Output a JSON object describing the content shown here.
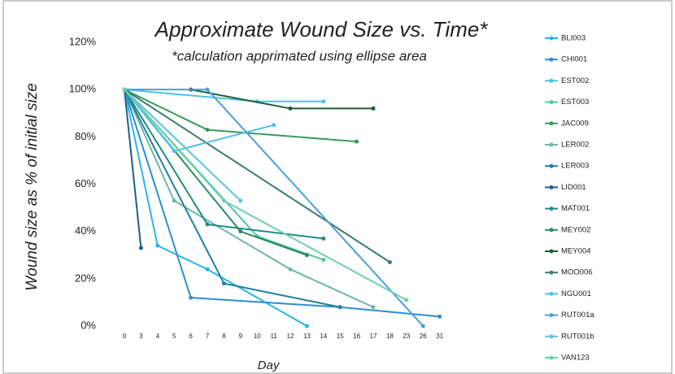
{
  "chart_data": {
    "type": "line",
    "title": "Approximate Wound Size vs. Time*",
    "subtitle": "*calculation apprimated using ellipse area",
    "x_label": "Day",
    "y_label": "Wound size as % of initial size",
    "categories": [
      "0",
      "3",
      "4",
      "5",
      "6",
      "7",
      "8",
      "9",
      "10",
      "11",
      "12",
      "13",
      "14",
      "15",
      "16",
      "17",
      "18",
      "23",
      "26",
      "31"
    ],
    "ylim": [
      0,
      120
    ],
    "yticks": [
      {
        "value": 0,
        "label": "0%"
      },
      {
        "value": 20,
        "label": "20%"
      },
      {
        "value": 40,
        "label": "40%"
      },
      {
        "value": 60,
        "label": "60%"
      },
      {
        "value": 80,
        "label": "80%"
      },
      {
        "value": 100,
        "label": "100%"
      },
      {
        "value": 120,
        "label": "120%"
      }
    ],
    "legend": "right",
    "series": [
      {
        "name": "BLI003",
        "color": "#2ab5e8",
        "x": [
          "0",
          "4",
          "7",
          "13"
        ],
        "values": [
          100,
          34,
          24,
          0
        ]
      },
      {
        "name": "CHI001",
        "color": "#2b8fd1",
        "x": [
          "0",
          "6",
          "15",
          "31"
        ],
        "values": [
          100,
          12,
          8,
          4
        ]
      },
      {
        "name": "EST002",
        "color": "#4dc3e0",
        "x": [
          "0",
          "10",
          "14"
        ],
        "values": [
          100,
          95,
          95
        ]
      },
      {
        "name": "EST003",
        "color": "#4fc9a0",
        "x": [
          "0",
          "10",
          "14"
        ],
        "values": [
          100,
          38,
          28
        ]
      },
      {
        "name": "JAC009",
        "color": "#3a9a5c",
        "x": [
          "0",
          "7",
          "16"
        ],
        "values": [
          100,
          83,
          78
        ]
      },
      {
        "name": "LER002",
        "color": "#6fb5a8",
        "x": [
          "0",
          "5",
          "12",
          "17"
        ],
        "values": [
          100,
          53,
          24,
          8
        ]
      },
      {
        "name": "LER003",
        "color": "#1f7fa0",
        "x": [
          "0",
          "8",
          "15"
        ],
        "values": [
          100,
          18,
          8
        ]
      },
      {
        "name": "LID001",
        "color": "#1e5f8a",
        "x": [
          "0",
          "3"
        ],
        "values": [
          100,
          33
        ]
      },
      {
        "name": "MAT001",
        "color": "#1f8a8a",
        "x": [
          "0",
          "7",
          "14"
        ],
        "values": [
          100,
          43,
          37
        ]
      },
      {
        "name": "MEY002",
        "color": "#2a8a60",
        "x": [
          "0",
          "9",
          "13"
        ],
        "values": [
          100,
          40,
          30
        ]
      },
      {
        "name": "MEY004",
        "color": "#1e5e3a",
        "x": [
          "6",
          "12",
          "17"
        ],
        "values": [
          100,
          92,
          92
        ]
      },
      {
        "name": "MOO006",
        "color": "#3d7a70",
        "x": [
          "0",
          "18"
        ],
        "values": [
          100,
          27
        ]
      },
      {
        "name": "NGU001",
        "color": "#4bc0e8",
        "x": [
          "0",
          "5",
          "11"
        ],
        "values": [
          100,
          74,
          85
        ]
      },
      {
        "name": "RUT001a",
        "color": "#4a9fd8",
        "x": [
          "0",
          "7",
          "26"
        ],
        "values": [
          100,
          100,
          0
        ]
      },
      {
        "name": "RUT001b",
        "color": "#5bc5dc",
        "x": [
          "0",
          "9"
        ],
        "values": [
          100,
          53
        ]
      },
      {
        "name": "VAN123",
        "color": "#6dd0a8",
        "x": [
          "0",
          "8",
          "23"
        ],
        "values": [
          100,
          53,
          11
        ]
      }
    ]
  }
}
